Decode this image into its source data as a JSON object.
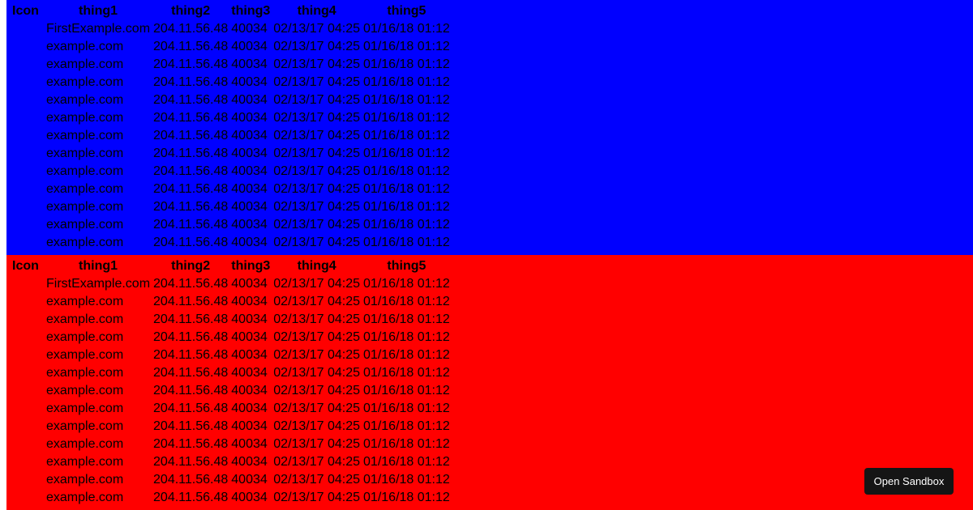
{
  "panels": [
    {
      "color": "#0000ff",
      "headers": [
        "Icon",
        "thing1",
        "thing2",
        "thing3",
        "thing4",
        "thing5"
      ],
      "rows": [
        [
          "",
          "FirstExample.com",
          "204.11.56.48",
          "40034",
          "02/13/17 04:25",
          "01/16/18 01:12"
        ],
        [
          "",
          "example.com",
          "204.11.56.48",
          "40034",
          "02/13/17 04:25",
          "01/16/18 01:12"
        ],
        [
          "",
          "example.com",
          "204.11.56.48",
          "40034",
          "02/13/17 04:25",
          "01/16/18 01:12"
        ],
        [
          "",
          "example.com",
          "204.11.56.48",
          "40034",
          "02/13/17 04:25",
          "01/16/18 01:12"
        ],
        [
          "",
          "example.com",
          "204.11.56.48",
          "40034",
          "02/13/17 04:25",
          "01/16/18 01:12"
        ],
        [
          "",
          "example.com",
          "204.11.56.48",
          "40034",
          "02/13/17 04:25",
          "01/16/18 01:12"
        ],
        [
          "",
          "example.com",
          "204.11.56.48",
          "40034",
          "02/13/17 04:25",
          "01/16/18 01:12"
        ],
        [
          "",
          "example.com",
          "204.11.56.48",
          "40034",
          "02/13/17 04:25",
          "01/16/18 01:12"
        ],
        [
          "",
          "example.com",
          "204.11.56.48",
          "40034",
          "02/13/17 04:25",
          "01/16/18 01:12"
        ],
        [
          "",
          "example.com",
          "204.11.56.48",
          "40034",
          "02/13/17 04:25",
          "01/16/18 01:12"
        ],
        [
          "",
          "example.com",
          "204.11.56.48",
          "40034",
          "02/13/17 04:25",
          "01/16/18 01:12"
        ],
        [
          "",
          "example.com",
          "204.11.56.48",
          "40034",
          "02/13/17 04:25",
          "01/16/18 01:12"
        ],
        [
          "",
          "example.com",
          "204.11.56.48",
          "40034",
          "02/13/17 04:25",
          "01/16/18 01:12"
        ]
      ]
    },
    {
      "color": "#ff0000",
      "headers": [
        "Icon",
        "thing1",
        "thing2",
        "thing3",
        "thing4",
        "thing5"
      ],
      "rows": [
        [
          "",
          "FirstExample.com",
          "204.11.56.48",
          "40034",
          "02/13/17 04:25",
          "01/16/18 01:12"
        ],
        [
          "",
          "example.com",
          "204.11.56.48",
          "40034",
          "02/13/17 04:25",
          "01/16/18 01:12"
        ],
        [
          "",
          "example.com",
          "204.11.56.48",
          "40034",
          "02/13/17 04:25",
          "01/16/18 01:12"
        ],
        [
          "",
          "example.com",
          "204.11.56.48",
          "40034",
          "02/13/17 04:25",
          "01/16/18 01:12"
        ],
        [
          "",
          "example.com",
          "204.11.56.48",
          "40034",
          "02/13/17 04:25",
          "01/16/18 01:12"
        ],
        [
          "",
          "example.com",
          "204.11.56.48",
          "40034",
          "02/13/17 04:25",
          "01/16/18 01:12"
        ],
        [
          "",
          "example.com",
          "204.11.56.48",
          "40034",
          "02/13/17 04:25",
          "01/16/18 01:12"
        ],
        [
          "",
          "example.com",
          "204.11.56.48",
          "40034",
          "02/13/17 04:25",
          "01/16/18 01:12"
        ],
        [
          "",
          "example.com",
          "204.11.56.48",
          "40034",
          "02/13/17 04:25",
          "01/16/18 01:12"
        ],
        [
          "",
          "example.com",
          "204.11.56.48",
          "40034",
          "02/13/17 04:25",
          "01/16/18 01:12"
        ],
        [
          "",
          "example.com",
          "204.11.56.48",
          "40034",
          "02/13/17 04:25",
          "01/16/18 01:12"
        ],
        [
          "",
          "example.com",
          "204.11.56.48",
          "40034",
          "02/13/17 04:25",
          "01/16/18 01:12"
        ],
        [
          "",
          "example.com",
          "204.11.56.48",
          "40034",
          "02/13/17 04:25",
          "01/16/18 01:12"
        ]
      ]
    }
  ],
  "sandbox_button": "Open Sandbox"
}
